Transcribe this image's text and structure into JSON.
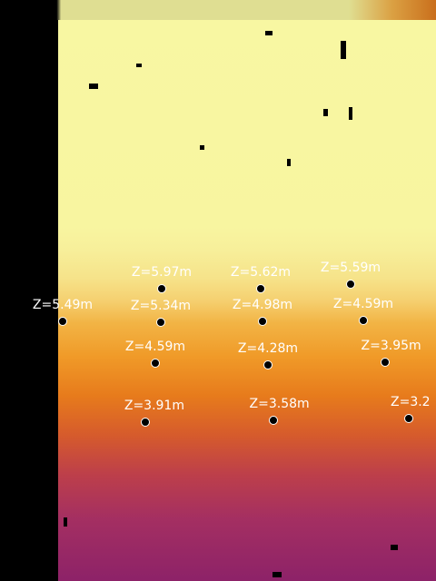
{
  "annotations": [
    {
      "label": "Z=5.49m"
    },
    {
      "label": "Z=5.97m"
    },
    {
      "label": "Z=5.34m"
    },
    {
      "label": "Z=5.62m"
    },
    {
      "label": "Z=4.98m"
    },
    {
      "label": "Z=5.59m"
    },
    {
      "label": "Z=4.59m"
    },
    {
      "label": "Z=4.59m"
    },
    {
      "label": "Z=4.28m"
    },
    {
      "label": "Z=3.95m"
    },
    {
      "label": "Z=3.91m"
    },
    {
      "label": "Z=3.58m"
    },
    {
      "label": "Z=3.2"
    }
  ]
}
